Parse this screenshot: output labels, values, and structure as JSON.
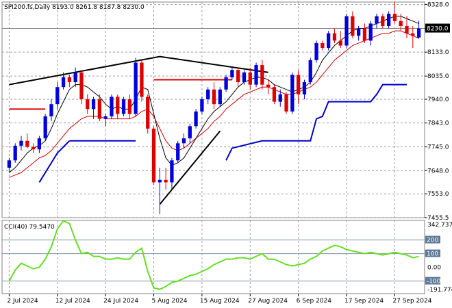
{
  "chart_data": [
    {
      "type": "candlestick",
      "title": "SPI200.fs,Daily  8193.0 8261.8 8187.8 8230.0",
      "symbol": "SPI200.fs",
      "timeframe": "Daily",
      "ohlc_header": "8193.0 8261.8 8187.8 8230.0",
      "ylim": [
        7455.5,
        8338
      ],
      "price_ticks": [
        "8328.0",
        "8230.0",
        "8133.0",
        "8035.0",
        "7940.0",
        "7843.0",
        "7745.0",
        "7648.0",
        "7553.0",
        "7455.5"
      ],
      "price_tick_values": [
        8328,
        8230,
        8133,
        8035,
        7940,
        7843,
        7745,
        7648,
        7553,
        7455.5
      ],
      "current_price_label": "8230.0",
      "current_price": 8230,
      "x_tick_labels": [
        "2 Jul 2024",
        "12 Jul 2024",
        "24 Jul 2024",
        "5 Aug 2024",
        "15 Aug 2024",
        "27 Aug 2024",
        "6 Sep 2024",
        "17 Sep 2024",
        "27 Sep 2024"
      ],
      "x_tick_index": [
        0,
        8,
        16,
        24,
        32,
        40,
        48,
        56,
        64
      ],
      "colors": {
        "bull": "#0000dd",
        "bear": "#dd0000",
        "fast_ma": "#000000",
        "slow_ma": "#cc0000",
        "stop_line": "#0000cc",
        "resistance": "#dd0000",
        "trend": "#000000",
        "current_line": "#808080"
      },
      "candles": [
        [
          7660,
          7700,
          7640,
          7690
        ],
        [
          7690,
          7760,
          7680,
          7750
        ],
        [
          7750,
          7790,
          7730,
          7770
        ],
        [
          7770,
          7800,
          7740,
          7745
        ],
        [
          7745,
          7760,
          7720,
          7735
        ],
        [
          7735,
          7790,
          7720,
          7780
        ],
        [
          7780,
          7880,
          7770,
          7870
        ],
        [
          7870,
          7940,
          7850,
          7920
        ],
        [
          7920,
          8010,
          7900,
          7990
        ],
        [
          7990,
          8050,
          7980,
          8030
        ],
        [
          8030,
          8040,
          7990,
          8010
        ],
        [
          8010,
          8070,
          7990,
          8050
        ],
        [
          8050,
          8060,
          7920,
          7940
        ],
        [
          7940,
          7960,
          7880,
          7900
        ],
        [
          7900,
          7950,
          7860,
          7940
        ],
        [
          7940,
          7960,
          7850,
          7860
        ],
        [
          7860,
          7880,
          7830,
          7870
        ],
        [
          7870,
          7960,
          7860,
          7950
        ],
        [
          7950,
          7960,
          7860,
          7880
        ],
        [
          7880,
          7950,
          7870,
          7940
        ],
        [
          7940,
          7960,
          7860,
          7880
        ],
        [
          7880,
          8110,
          7870,
          8090
        ],
        [
          8090,
          8100,
          7930,
          7950
        ],
        [
          7950,
          7960,
          7800,
          7820
        ],
        [
          7820,
          7830,
          7590,
          7600
        ],
        [
          7600,
          7660,
          7470,
          7610
        ],
        [
          7610,
          7660,
          7570,
          7600
        ],
        [
          7600,
          7700,
          7570,
          7690
        ],
        [
          7690,
          7770,
          7680,
          7760
        ],
        [
          7760,
          7800,
          7740,
          7780
        ],
        [
          7780,
          7840,
          7760,
          7830
        ],
        [
          7830,
          7900,
          7820,
          7890
        ],
        [
          7890,
          7950,
          7880,
          7940
        ],
        [
          7940,
          7990,
          7920,
          7980
        ],
        [
          7980,
          8010,
          7900,
          7920
        ],
        [
          7920,
          7990,
          7910,
          7980
        ],
        [
          7980,
          8040,
          7970,
          8030
        ],
        [
          8030,
          8070,
          8020,
          8060
        ],
        [
          8060,
          8070,
          7990,
          8010
        ],
        [
          8010,
          8060,
          8000,
          8050
        ],
        [
          8050,
          8070,
          7980,
          8000
        ],
        [
          8000,
          8090,
          7990,
          8080
        ],
        [
          8080,
          8100,
          7980,
          8000
        ],
        [
          8000,
          8020,
          7960,
          7990
        ],
        [
          7990,
          8000,
          7920,
          7930
        ],
        [
          7930,
          7980,
          7910,
          7960
        ],
        [
          7960,
          7970,
          7880,
          7890
        ],
        [
          7890,
          8050,
          7880,
          8040
        ],
        [
          8040,
          8060,
          7920,
          7960
        ],
        [
          7960,
          8020,
          7940,
          8010
        ],
        [
          8010,
          8110,
          8000,
          8100
        ],
        [
          8100,
          8180,
          8090,
          8170
        ],
        [
          8170,
          8180,
          8140,
          8150
        ],
        [
          8150,
          8220,
          8140,
          8210
        ],
        [
          8210,
          8230,
          8170,
          8180
        ],
        [
          8180,
          8220,
          8150,
          8160
        ],
        [
          8160,
          8290,
          8150,
          8280
        ],
        [
          8280,
          8300,
          8190,
          8200
        ],
        [
          8200,
          8240,
          8180,
          8230
        ],
        [
          8230,
          8250,
          8170,
          8180
        ],
        [
          8180,
          8260,
          8160,
          8250
        ],
        [
          8250,
          8290,
          8230,
          8280
        ],
        [
          8280,
          8290,
          8230,
          8240
        ],
        [
          8240,
          8300,
          8230,
          8290
        ],
        [
          8290,
          8340,
          8250,
          8260
        ],
        [
          8260,
          8290,
          8220,
          8240
        ],
        [
          8240,
          8280,
          8190,
          8210
        ],
        [
          8210,
          8240,
          8150,
          8200
        ],
        [
          8193,
          8261.8,
          8187.8,
          8230
        ]
      ],
      "fast_ma": [
        7640,
        7660,
        7690,
        7720,
        7740,
        7750,
        7770,
        7820,
        7880,
        7930,
        7980,
        8000,
        8000,
        7990,
        7970,
        7950,
        7920,
        7900,
        7910,
        7900,
        7900,
        7940,
        7990,
        7980,
        7880,
        7780,
        7700,
        7670,
        7680,
        7700,
        7740,
        7780,
        7820,
        7860,
        7890,
        7910,
        7930,
        7960,
        7990,
        8010,
        8020,
        8030,
        8030,
        8020,
        8000,
        7990,
        7980,
        7970,
        7980,
        7990,
        8010,
        8050,
        8100,
        8130,
        8160,
        8180,
        8200,
        8220,
        8230,
        8230,
        8240,
        8250,
        8260,
        8270,
        8280,
        8280,
        8270,
        8260,
        8250
      ],
      "slow_ma": [
        7620,
        7630,
        7640,
        7660,
        7680,
        7700,
        7710,
        7730,
        7760,
        7790,
        7820,
        7840,
        7860,
        7870,
        7870,
        7870,
        7860,
        7860,
        7860,
        7860,
        7860,
        7870,
        7890,
        7900,
        7870,
        7820,
        7770,
        7740,
        7730,
        7740,
        7760,
        7780,
        7800,
        7820,
        7850,
        7870,
        7900,
        7920,
        7940,
        7960,
        7970,
        7980,
        7990,
        7990,
        7980,
        7970,
        7960,
        7960,
        7970,
        7980,
        7990,
        8010,
        8040,
        8070,
        8100,
        8120,
        8140,
        8160,
        8170,
        8180,
        8190,
        8200,
        8210,
        8210,
        8220,
        8220,
        8210,
        8200,
        8190
      ],
      "stop_segments": [
        [
          [
            5,
            7600
          ],
          [
            8,
            7720
          ],
          [
            10,
            7770
          ]
        ],
        [
          [
            10,
            7770
          ],
          [
            21,
            7770
          ]
        ],
        [
          [
            36,
            7690
          ],
          [
            37,
            7740
          ],
          [
            42,
            7770
          ],
          [
            50,
            7770
          ],
          [
            51,
            7860
          ],
          [
            52,
            7870
          ],
          [
            53,
            7930
          ],
          [
            60,
            7930
          ],
          [
            61,
            7960
          ],
          [
            62,
            8000
          ],
          [
            64,
            8000
          ],
          [
            66,
            8000
          ]
        ]
      ],
      "resistance_segments": [
        [
          [
            0,
            7900
          ],
          [
            6,
            7900
          ]
        ],
        [
          [
            24,
            8020
          ],
          [
            37,
            8020
          ]
        ]
      ],
      "trend_segments": [
        [
          [
            0,
            8000
          ],
          [
            25,
            8115
          ],
          [
            43,
            8050
          ]
        ],
        [
          [
            25,
            7510
          ],
          [
            35,
            7810
          ]
        ]
      ]
    },
    {
      "type": "line",
      "title": "CCI(40) 79.5470",
      "indicator": "CCI(40)",
      "current_value": "79.5470",
      "ylim": [
        -191.7746,
        342.7377
      ],
      "y_tick_labels": [
        "342.7377",
        "200",
        "100",
        "0.00",
        "-100",
        "-191.7746"
      ],
      "y_tick_values": [
        342.7377,
        200,
        100,
        0,
        -100,
        -191.7746
      ],
      "levels": [
        200,
        100,
        -100
      ],
      "line_color": "#66dd22",
      "values": [
        -100,
        -20,
        30,
        10,
        -10,
        0,
        60,
        150,
        280,
        340,
        320,
        200,
        100,
        110,
        80,
        80,
        60,
        60,
        70,
        60,
        60,
        110,
        140,
        -30,
        -150,
        -160,
        -140,
        -110,
        -100,
        -80,
        -60,
        -50,
        -30,
        -10,
        20,
        40,
        60,
        60,
        70,
        70,
        60,
        80,
        100,
        60,
        60,
        40,
        20,
        10,
        20,
        30,
        60,
        80,
        120,
        140,
        160,
        150,
        130,
        120,
        110,
        100,
        110,
        100,
        90,
        100,
        110,
        100,
        90,
        70,
        79.547
      ]
    }
  ]
}
